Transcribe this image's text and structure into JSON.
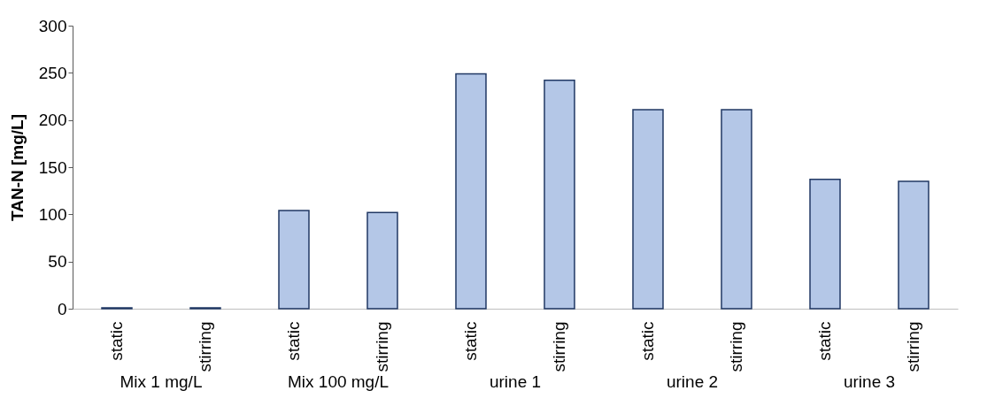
{
  "chart_data": {
    "type": "bar",
    "ylabel": "TAN-N [mg/L]",
    "categories": [
      "static",
      "stirring",
      "static",
      "stirring",
      "static",
      "stirring",
      "static",
      "stirring",
      "static",
      "stirring"
    ],
    "values": [
      1,
      1,
      104,
      102,
      249,
      242,
      211,
      211,
      137,
      135
    ],
    "color": "#b4c7e7",
    "ylim": [
      0,
      300
    ],
    "yticks": [
      0,
      50,
      100,
      150,
      200,
      250,
      300
    ],
    "grid": false,
    "annotations": [
      "Mix 1 mg/L",
      "Mix 100 mg/L",
      "urine 1",
      "urine 2",
      "urine 3"
    ]
  }
}
